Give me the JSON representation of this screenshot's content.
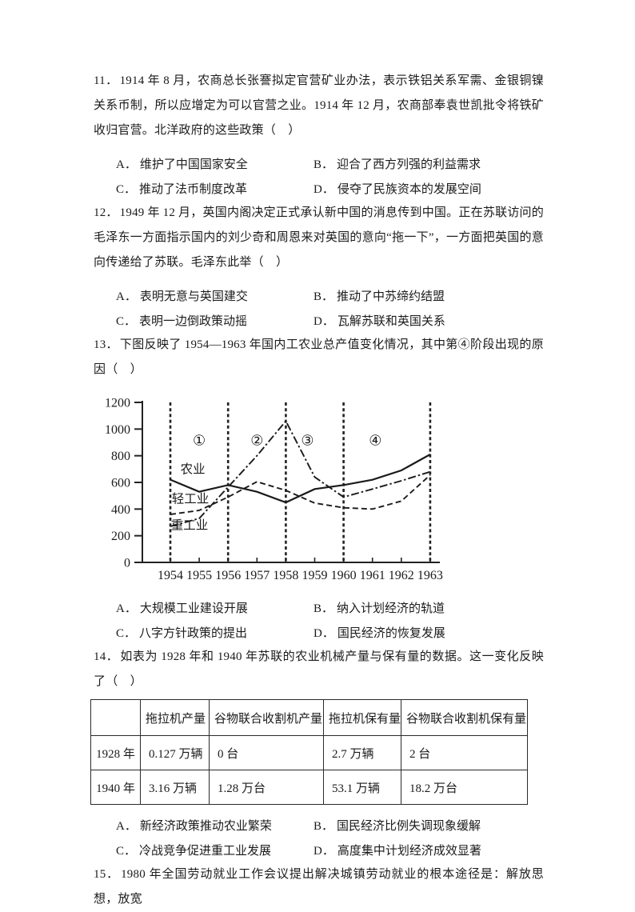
{
  "page": {
    "type": "exam-paper-page",
    "language": "zh-CN",
    "colors": {
      "background": "#ffffff",
      "text": "#1b1b1b",
      "lines": "#2b2b2b"
    }
  },
  "questions": [
    {
      "number": "11．",
      "stem": "1914 年 8 月，农商总长张謇拟定官营矿业办法，表示铁铝关系军需、金银铜镍关系币制，所以应增定为可以官营之业。1914 年 12 月，农商部奉袁世凯批令将铁矿收归官营。北洋政府的这些政策（　）",
      "options": [
        {
          "label": "A．",
          "text": "维护了中国国家安全"
        },
        {
          "label": "B．",
          "text": "迎合了西方列强的利益需求"
        },
        {
          "label": "C．",
          "text": "推动了法币制度改革"
        },
        {
          "label": "D．",
          "text": "侵夺了民族资本的发展空间"
        }
      ]
    },
    {
      "number": "12．",
      "stem": "1949 年 12 月，英国内阁决定正式承认新中国的消息传到中国。正在苏联访问的毛泽东一方面指示国内的刘少奇和周恩来对英国的意向“拖一下”，一方面把英国的意向传递给了苏联。毛泽东此举（　）",
      "options": [
        {
          "label": "A．",
          "text": "表明无意与英国建交"
        },
        {
          "label": "B．",
          "text": "推动了中苏缔约结盟"
        },
        {
          "label": "C．",
          "text": "表明一边倒政策动摇"
        },
        {
          "label": "D．",
          "text": "瓦解苏联和英国关系"
        }
      ]
    },
    {
      "number": "13．",
      "stem": "下图反映了 1954—1963 年国内工农业总产值变化情况，其中第④阶段出现的原因（　）",
      "options": [
        {
          "label": "A．",
          "text": "大规模工业建设开展"
        },
        {
          "label": "B．",
          "text": "纳入计划经济的轨道"
        },
        {
          "label": "C．",
          "text": "八字方针政策的提出"
        },
        {
          "label": "D．",
          "text": "国民经济的恢复发展"
        }
      ]
    },
    {
      "number": "14．",
      "stem": "如表为 1928 年和 1940 年苏联的农业机械产量与保有量的数据。这一变化反映了（　）",
      "options": [
        {
          "label": "A．",
          "text": "新经济政策推动农业繁荣"
        },
        {
          "label": "B．",
          "text": "国民经济比例失调现象缓解"
        },
        {
          "label": "C．",
          "text": "冷战竞争促进重工业发展"
        },
        {
          "label": "D．",
          "text": "高度集中计划经济成效显著"
        }
      ]
    },
    {
      "number": "15．",
      "stem": "1980 年全国劳动就业工作会议提出解决城镇劳动就业的根本途径是：解放思想，放宽",
      "options": []
    }
  ],
  "chart_data": {
    "type": "line",
    "title": "",
    "context": "1954—1963 年国内工农业总产值变化情况（题13配图）",
    "x": [
      1954,
      1955,
      1956,
      1957,
      1958,
      1959,
      1960,
      1961,
      1962,
      1963
    ],
    "xlabel": "",
    "ylabel": "",
    "ylim": [
      0,
      1200
    ],
    "ytick_step": 200,
    "grid": false,
    "legend_position": "inline-labels",
    "series": [
      {
        "name": "农业",
        "style": "solid",
        "values": [
          620,
          530,
          580,
          530,
          450,
          550,
          580,
          620,
          690,
          810
        ],
        "label_year": 1954.35,
        "label_value": 668
      },
      {
        "name": "轻工业",
        "style": "dashed",
        "values": [
          360,
          390,
          490,
          605,
          540,
          445,
          410,
          400,
          460,
          655
        ],
        "label_year": 1954.05,
        "label_value": 448
      },
      {
        "name": "重工业",
        "style": "dashdot",
        "values": [
          270,
          330,
          565,
          800,
          1060,
          640,
          490,
          550,
          612,
          680
        ],
        "label_year": 1954.02,
        "label_value": 250
      }
    ],
    "phase_dividers": [
      1954,
      1956,
      1958,
      1960,
      1963
    ],
    "phase_labels": [
      {
        "text": "①",
        "year": 1955
      },
      {
        "text": "②",
        "year": 1957
      },
      {
        "text": "③",
        "year": 1958.75
      },
      {
        "text": "④",
        "year": 1961.1
      }
    ]
  },
  "q14_table": {
    "headers": [
      "",
      "拖拉机产量",
      "谷物联合收割机产量",
      "拖拉机保有量",
      "谷物联合收割机保有量"
    ],
    "rows": [
      {
        "label": "1928 年",
        "cells": [
          "0.127 万辆",
          "0 台",
          "2.7 万辆",
          "2 台"
        ]
      },
      {
        "label": "1940 年",
        "cells": [
          "3.16 万辆",
          "1.28 万台",
          "53.1 万辆",
          "18.2 万台"
        ]
      }
    ]
  }
}
